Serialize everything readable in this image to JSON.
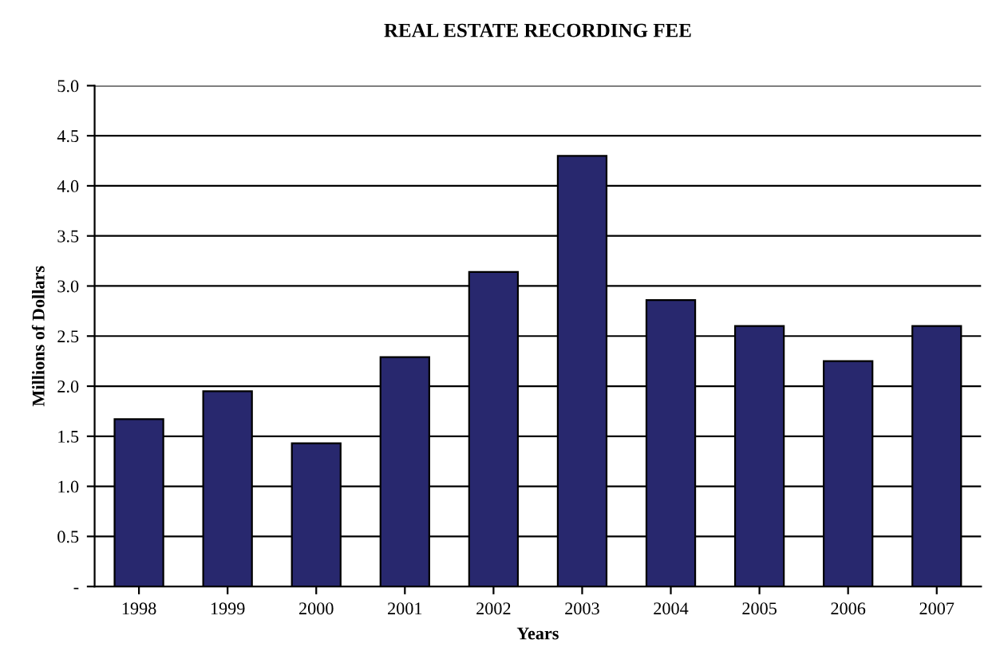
{
  "chart_data": {
    "type": "bar",
    "title": "REAL ESTATE RECORDING FEE",
    "xlabel": "Years",
    "ylabel": "Millions of Dollars",
    "categories": [
      "1998",
      "1999",
      "2000",
      "2001",
      "2002",
      "2003",
      "2004",
      "2005",
      "2006",
      "2007"
    ],
    "values": [
      1.67,
      1.95,
      1.43,
      2.29,
      3.14,
      4.3,
      2.86,
      2.6,
      2.25,
      2.6
    ],
    "color": "#28286e",
    "ylim": [
      0,
      5
    ],
    "yticks": [
      {
        "value": 0,
        "label": "-"
      },
      0.5,
      {
        "value": 1,
        "label": "1.0"
      },
      1.5,
      {
        "value": 2,
        "label": "2.0"
      },
      2.5,
      {
        "value": 3,
        "label": "3.0"
      },
      3.5,
      {
        "value": 4,
        "label": "4.0"
      },
      4.5,
      {
        "value": 5,
        "label": "5.0"
      }
    ],
    "grid": "y",
    "legend": false
  }
}
